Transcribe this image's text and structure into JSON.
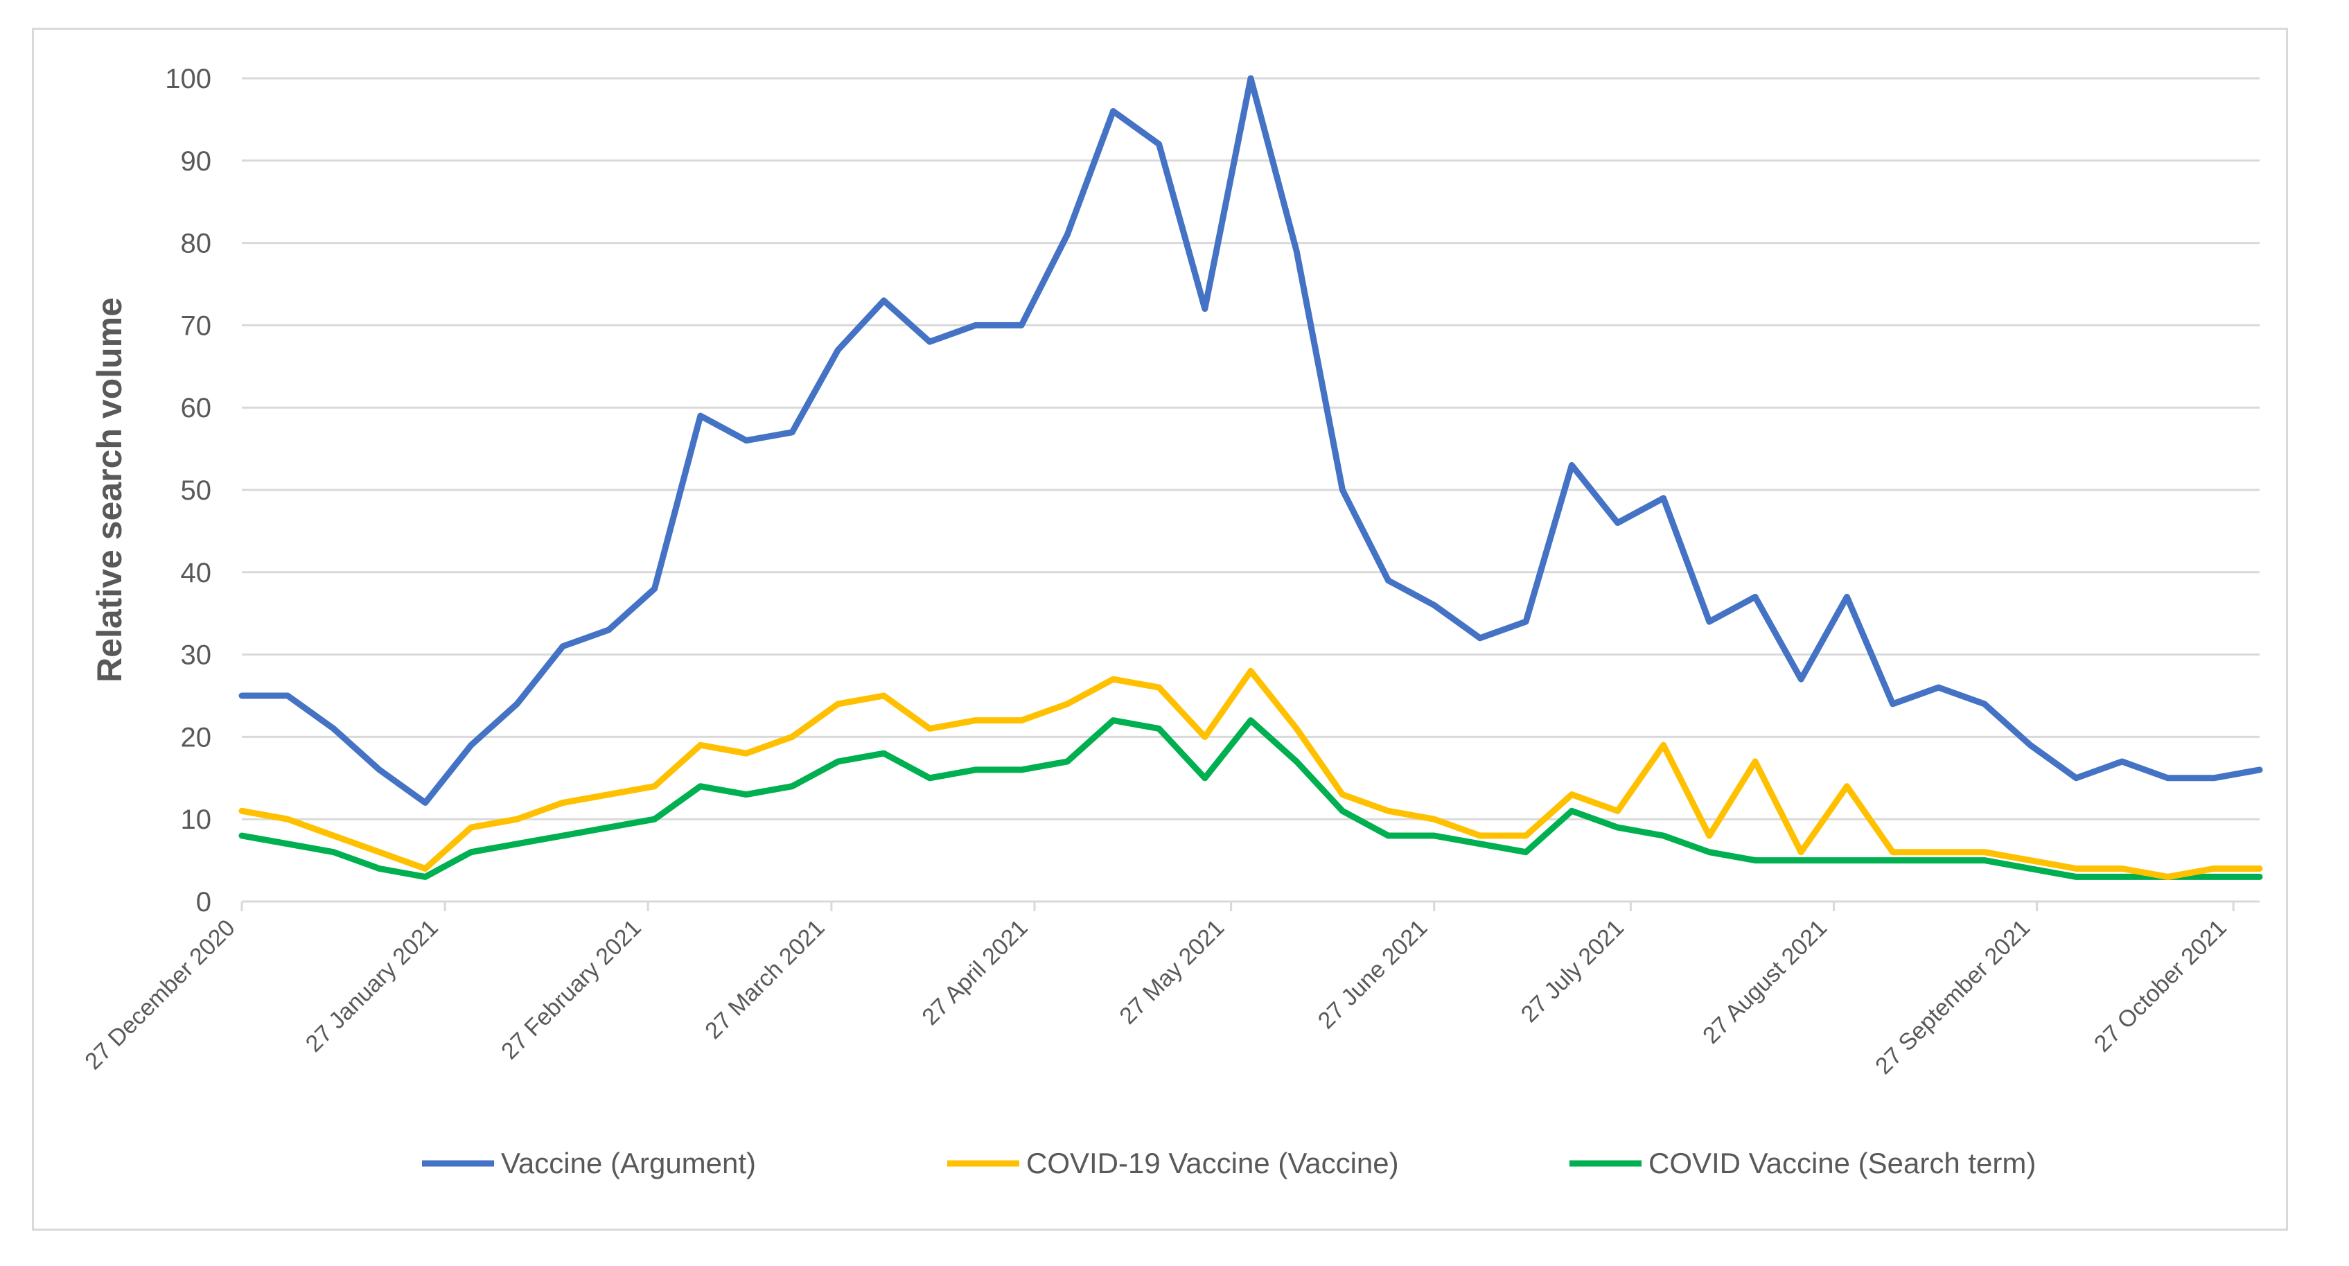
{
  "chart_data": {
    "type": "line",
    "title": "",
    "xlabel": "",
    "ylabel": "Relative search volume",
    "ylim": [
      0,
      100
    ],
    "yticks": [
      0,
      10,
      20,
      30,
      40,
      50,
      60,
      70,
      80,
      90,
      100
    ],
    "grid": true,
    "legend_position": "bottom",
    "x_start": "2020-12-27",
    "x_step_days": 7,
    "x_tick_labels": [
      "27 December 2020",
      "27 January 2021",
      "27 February 2021",
      "27 March 2021",
      "27 April 2021",
      "27 May 2021",
      "27 June 2021",
      "27 July 2021",
      "27 August 2021",
      "27 September 2021",
      "27 October 2021"
    ],
    "x_tick_week_index": [
      0,
      4.4286,
      8.8571,
      12.8571,
      17.2857,
      21.5714,
      26,
      30.2857,
      34.7143,
      39.1429,
      43.4286
    ],
    "series": [
      {
        "name": "Vaccine (Argument)",
        "color": "#4472c4",
        "values": [
          25,
          25,
          21,
          16,
          12,
          19,
          24,
          31,
          33,
          38,
          59,
          56,
          57,
          67,
          73,
          68,
          70,
          70,
          81,
          96,
          92,
          72,
          100,
          79,
          50,
          39,
          36,
          32,
          34,
          53,
          46,
          49,
          34,
          37,
          27,
          37,
          24,
          26,
          24,
          19,
          15,
          17,
          15,
          15,
          16
        ]
      },
      {
        "name": "COVID-19 Vaccine (Vaccine)",
        "color": "#ffc000",
        "values": [
          11,
          10,
          8,
          6,
          4,
          9,
          10,
          12,
          13,
          14,
          19,
          18,
          20,
          24,
          25,
          21,
          22,
          22,
          24,
          27,
          26,
          20,
          28,
          21,
          13,
          11,
          10,
          8,
          8,
          13,
          11,
          19,
          8,
          17,
          6,
          14,
          6,
          6,
          6,
          5,
          4,
          4,
          3,
          4,
          4
        ]
      },
      {
        "name": "COVID Vaccine (Search term)",
        "color": "#00b050",
        "values": [
          8,
          7,
          6,
          4,
          3,
          6,
          7,
          8,
          9,
          10,
          14,
          13,
          14,
          17,
          18,
          15,
          16,
          16,
          17,
          22,
          21,
          15,
          22,
          17,
          11,
          8,
          8,
          7,
          6,
          11,
          9,
          8,
          6,
          5,
          5,
          5,
          5,
          5,
          5,
          4,
          3,
          3,
          3,
          3,
          3
        ]
      }
    ]
  }
}
